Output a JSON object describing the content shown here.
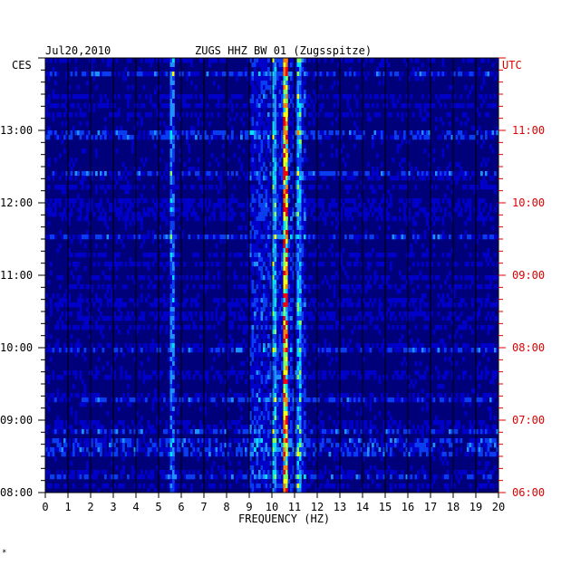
{
  "chart_data": {
    "type": "heatmap",
    "title_date": "Jul20,2010",
    "title_station": "ZUGS HHZ BW 01 (Zugsspitze)",
    "xlabel": "FREQUENCY (HZ)",
    "x_ticks": [
      0,
      1,
      2,
      3,
      4,
      5,
      6,
      7,
      8,
      9,
      10,
      11,
      12,
      13,
      14,
      15,
      16,
      17,
      18,
      19,
      20
    ],
    "xlim": [
      0,
      20
    ],
    "left_axis": {
      "unit": "CES",
      "ticks": [
        "13:00",
        "12:00",
        "11:00",
        "10:00",
        "09:00",
        "08:00"
      ],
      "range": [
        "08:00",
        "14:00"
      ]
    },
    "right_axis": {
      "unit": "UTC",
      "ticks": [
        "11:00",
        "10:00",
        "09:00",
        "08:00",
        "07:00",
        "06:00"
      ],
      "range": [
        "06:00",
        "12:00"
      ]
    },
    "colormap": [
      "#00007a",
      "#0000c8",
      "#0a3cf0",
      "#1e90ff",
      "#00e0ff",
      "#7fff60",
      "#ffff00",
      "#ff8000",
      "#ff0000"
    ],
    "grid": true,
    "dominant_band_hz": 10.6,
    "secondary_bands_hz": [
      10.1,
      11.2,
      5.6
    ],
    "colors": {
      "left_axis": "#000000",
      "right_axis": "#e00000",
      "background": "#00007a"
    },
    "footnote_mark": "*"
  }
}
